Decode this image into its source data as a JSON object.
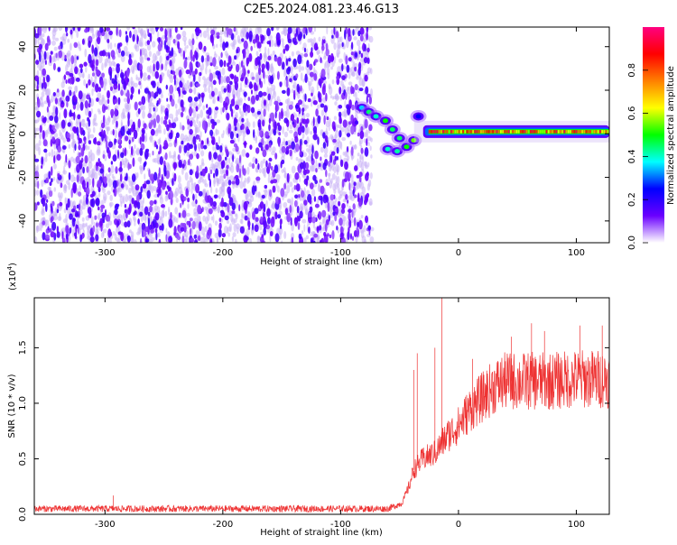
{
  "title": "C2E5.2024.081.23.46.G13",
  "chart_data": [
    {
      "type": "heatmap",
      "name": "spectrogram",
      "xlabel": "Height of straight line (km)",
      "ylabel": "Frequency (Hz)",
      "xlim": [
        -360,
        128
      ],
      "ylim": [
        -50,
        49
      ],
      "xticks": [
        -300,
        -200,
        -100,
        0,
        100
      ],
      "xtick_labels": [
        "-300",
        "-200",
        "-100",
        "0",
        "100"
      ],
      "yticks": [
        -40,
        -20,
        0,
        20,
        40
      ],
      "ytick_labels": [
        "-40",
        "-20",
        "0",
        "20",
        "40"
      ],
      "noise_region_x": [
        -360,
        -70
      ],
      "transition": [
        {
          "x": -82,
          "y": 12,
          "amp": 0.35
        },
        {
          "x": -76,
          "y": 10,
          "amp": 0.45
        },
        {
          "x": -70,
          "y": 8,
          "amp": 0.4
        },
        {
          "x": -62,
          "y": 6,
          "amp": 0.5
        },
        {
          "x": -56,
          "y": 2,
          "amp": 0.45
        },
        {
          "x": -50,
          "y": -2,
          "amp": 0.45
        },
        {
          "x": -60,
          "y": -7,
          "amp": 0.4
        },
        {
          "x": -52,
          "y": -8,
          "amp": 0.42
        },
        {
          "x": -44,
          "y": -6,
          "amp": 0.5
        },
        {
          "x": -38,
          "y": -3,
          "amp": 0.55
        },
        {
          "x": -34,
          "y": 8,
          "amp": 0.25
        }
      ],
      "band_center": 1,
      "band_start_x": -30,
      "colorbar": {
        "label": "Normalized spectral amplitude",
        "range": [
          0,
          1
        ],
        "ticks": [
          0.0,
          0.2,
          0.4,
          0.6,
          0.8
        ],
        "tick_labels": [
          "0.0",
          "0.2",
          "0.4",
          "0.6",
          "0.8"
        ],
        "stops": [
          "#ffffff",
          "#6a00ff",
          "#0000ff",
          "#00ffff",
          "#00ff00",
          "#ffff00",
          "#ff8000",
          "#ff0000",
          "#ff0080"
        ]
      }
    },
    {
      "type": "line",
      "name": "snr",
      "xlabel": "Height of straight line (km)",
      "ylabel": "SNR (10 * v/v)",
      "scale_label": "(x10",
      "scale_exp": "4",
      "scale_close": ")",
      "xlim": [
        -360,
        128
      ],
      "ylim": [
        0,
        1.95
      ],
      "xticks": [
        -300,
        -200,
        -100,
        0,
        100
      ],
      "xtick_labels": [
        "-300",
        "-200",
        "-100",
        "0",
        "100"
      ],
      "yticks": [
        0.0,
        0.5,
        1.0,
        1.5
      ],
      "ytick_labels": [
        "0.0",
        "0.5",
        "1.0",
        "1.5"
      ],
      "color": "#ee3333",
      "envelope": {
        "x": [
          -360,
          -250,
          -150,
          -60,
          -48,
          -42,
          -38,
          -30,
          -20,
          -10,
          0,
          10,
          20,
          30,
          40,
          60,
          80,
          100,
          128
        ],
        "y": [
          0.05,
          0.05,
          0.05,
          0.05,
          0.1,
          0.25,
          0.4,
          0.5,
          0.55,
          0.7,
          0.8,
          0.95,
          1.05,
          1.15,
          1.2,
          1.2,
          1.2,
          1.22,
          1.22
        ]
      },
      "spikes": [
        {
          "x": -293,
          "y": 0.17
        },
        {
          "x": -38,
          "y": 1.3
        },
        {
          "x": -35,
          "y": 1.45
        },
        {
          "x": -14,
          "y": 1.95
        },
        {
          "x": -20,
          "y": 1.5
        },
        {
          "x": 12,
          "y": 1.4
        },
        {
          "x": 45,
          "y": 1.6
        },
        {
          "x": 62,
          "y": 1.72
        },
        {
          "x": 73,
          "y": 1.65
        },
        {
          "x": 103,
          "y": 1.7
        },
        {
          "x": 122,
          "y": 1.7
        }
      ]
    }
  ]
}
